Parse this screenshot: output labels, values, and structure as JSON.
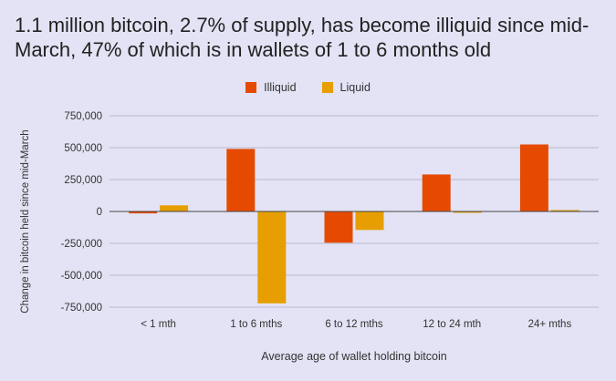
{
  "chart_data": {
    "type": "bar",
    "title": "1.1 million bitcoin, 2.7% of supply, has become illiquid since mid-March, 47% of which is in wallets of 1 to 6 months old",
    "xlabel": "Average age of wallet holding bitcoin",
    "ylabel": "Change in bitcoin held since mid-March",
    "categories": [
      "< 1 mth",
      "1 to 6 mths",
      "6 to 12 mths",
      "12 to 24 mth",
      "24+ mths"
    ],
    "series": [
      {
        "name": "Illiquid",
        "color": "#e64a00",
        "values": [
          -15000,
          490000,
          -245000,
          290000,
          525000
        ]
      },
      {
        "name": "Liquid",
        "color": "#e69e00",
        "values": [
          48000,
          -720000,
          -145000,
          -10000,
          5000
        ]
      }
    ],
    "ylim": [
      -750000,
      750000
    ],
    "yticks": [
      750000,
      500000,
      250000,
      0,
      -250000,
      -500000,
      -750000
    ],
    "ytick_labels": [
      "750,000",
      "500,000",
      "250,000",
      "0",
      "-250,000",
      "-500,000",
      "-750,000"
    ],
    "grid": true,
    "legend_position": "top-center"
  }
}
